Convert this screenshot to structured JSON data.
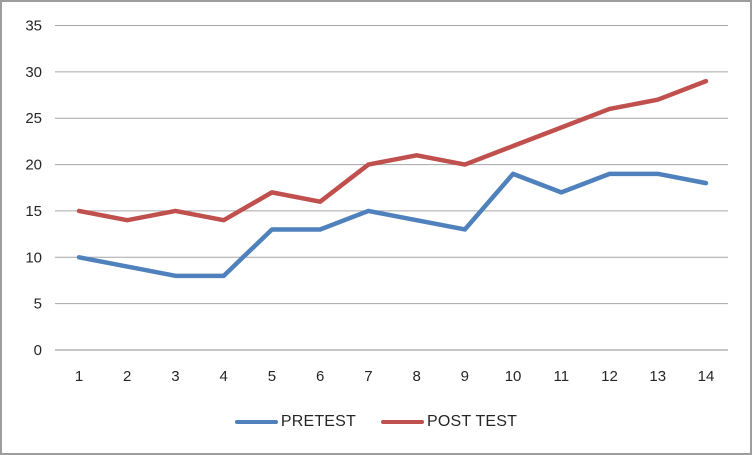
{
  "chart_data": {
    "type": "line",
    "title": "",
    "xlabel": "",
    "ylabel": "",
    "categories": [
      "1",
      "2",
      "3",
      "4",
      "5",
      "6",
      "7",
      "8",
      "9",
      "10",
      "11",
      "12",
      "13",
      "14"
    ],
    "series": [
      {
        "name": "PRETEST",
        "color": "#4F81BD",
        "values": [
          10,
          9,
          8,
          8,
          13,
          13,
          15,
          14,
          13,
          19,
          17,
          19,
          19,
          18
        ]
      },
      {
        "name": "POST TEST",
        "color": "#C0504D",
        "values": [
          15,
          14,
          15,
          14,
          17,
          16,
          20,
          21,
          20,
          22,
          24,
          26,
          27,
          29
        ]
      }
    ],
    "ylim": [
      0,
      35
    ],
    "y_tick_step": 5,
    "y_ticks": [
      0,
      5,
      10,
      15,
      20,
      25,
      30,
      35
    ],
    "grid": true,
    "legend_position": "bottom"
  },
  "colors": {
    "gridline": "#A6A6A6",
    "axis_line": "#8C8C8C",
    "tick_label": "#262626",
    "frame_border": "#9D9D9D",
    "background": "#FFFFFF"
  }
}
